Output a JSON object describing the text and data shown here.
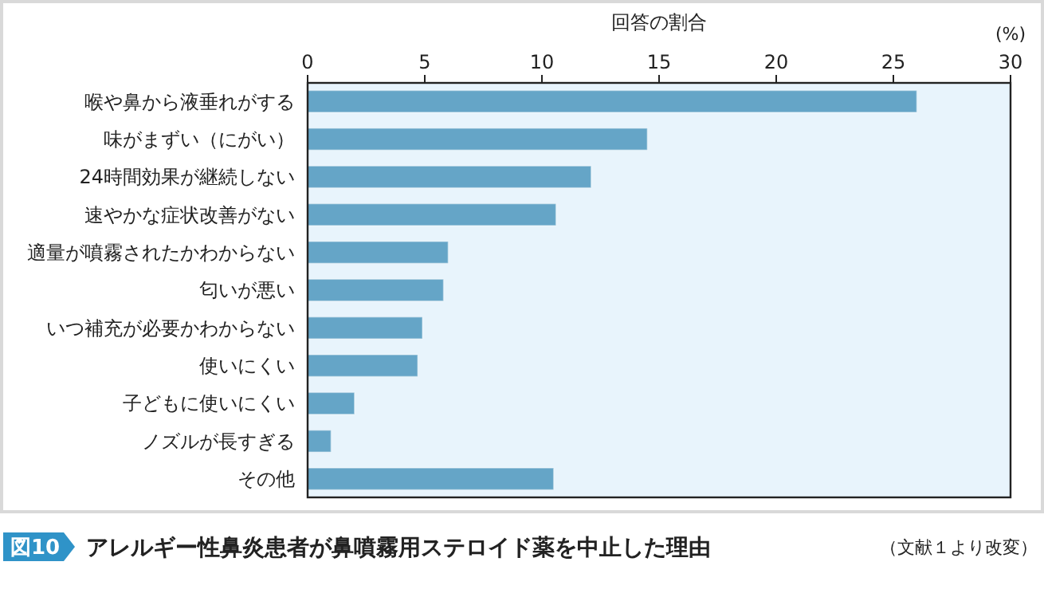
{
  "chart_data": {
    "type": "bar",
    "orientation": "horizontal",
    "title": "アレルギー性鼻炎患者が鼻噴霧用ステロイド薬を中止した理由",
    "xlabel": "回答の割合",
    "annotations": [
      "図10",
      "(%)",
      "（文献１より改変）"
    ],
    "categories": [
      "喉や鼻から液垂れがする",
      "味がまずい（にがい）",
      "24時間効果が継続しない",
      "速やかな症状改善がない",
      "適量が噴霧されたかわからない",
      "匂いが悪い",
      "いつ補充が必要かわからない",
      "使いにくい",
      "子どもに使いにくい",
      "ノズルが長すぎる",
      "その他"
    ],
    "values": [
      26.0,
      14.5,
      12.1,
      10.6,
      6.0,
      5.8,
      4.9,
      4.7,
      2.0,
      1.0,
      10.5
    ],
    "color": "#65a5c7",
    "xlim": [
      0,
      30
    ],
    "xticks": [
      0,
      5,
      10,
      15,
      20,
      25,
      30
    ],
    "grid": false
  }
}
